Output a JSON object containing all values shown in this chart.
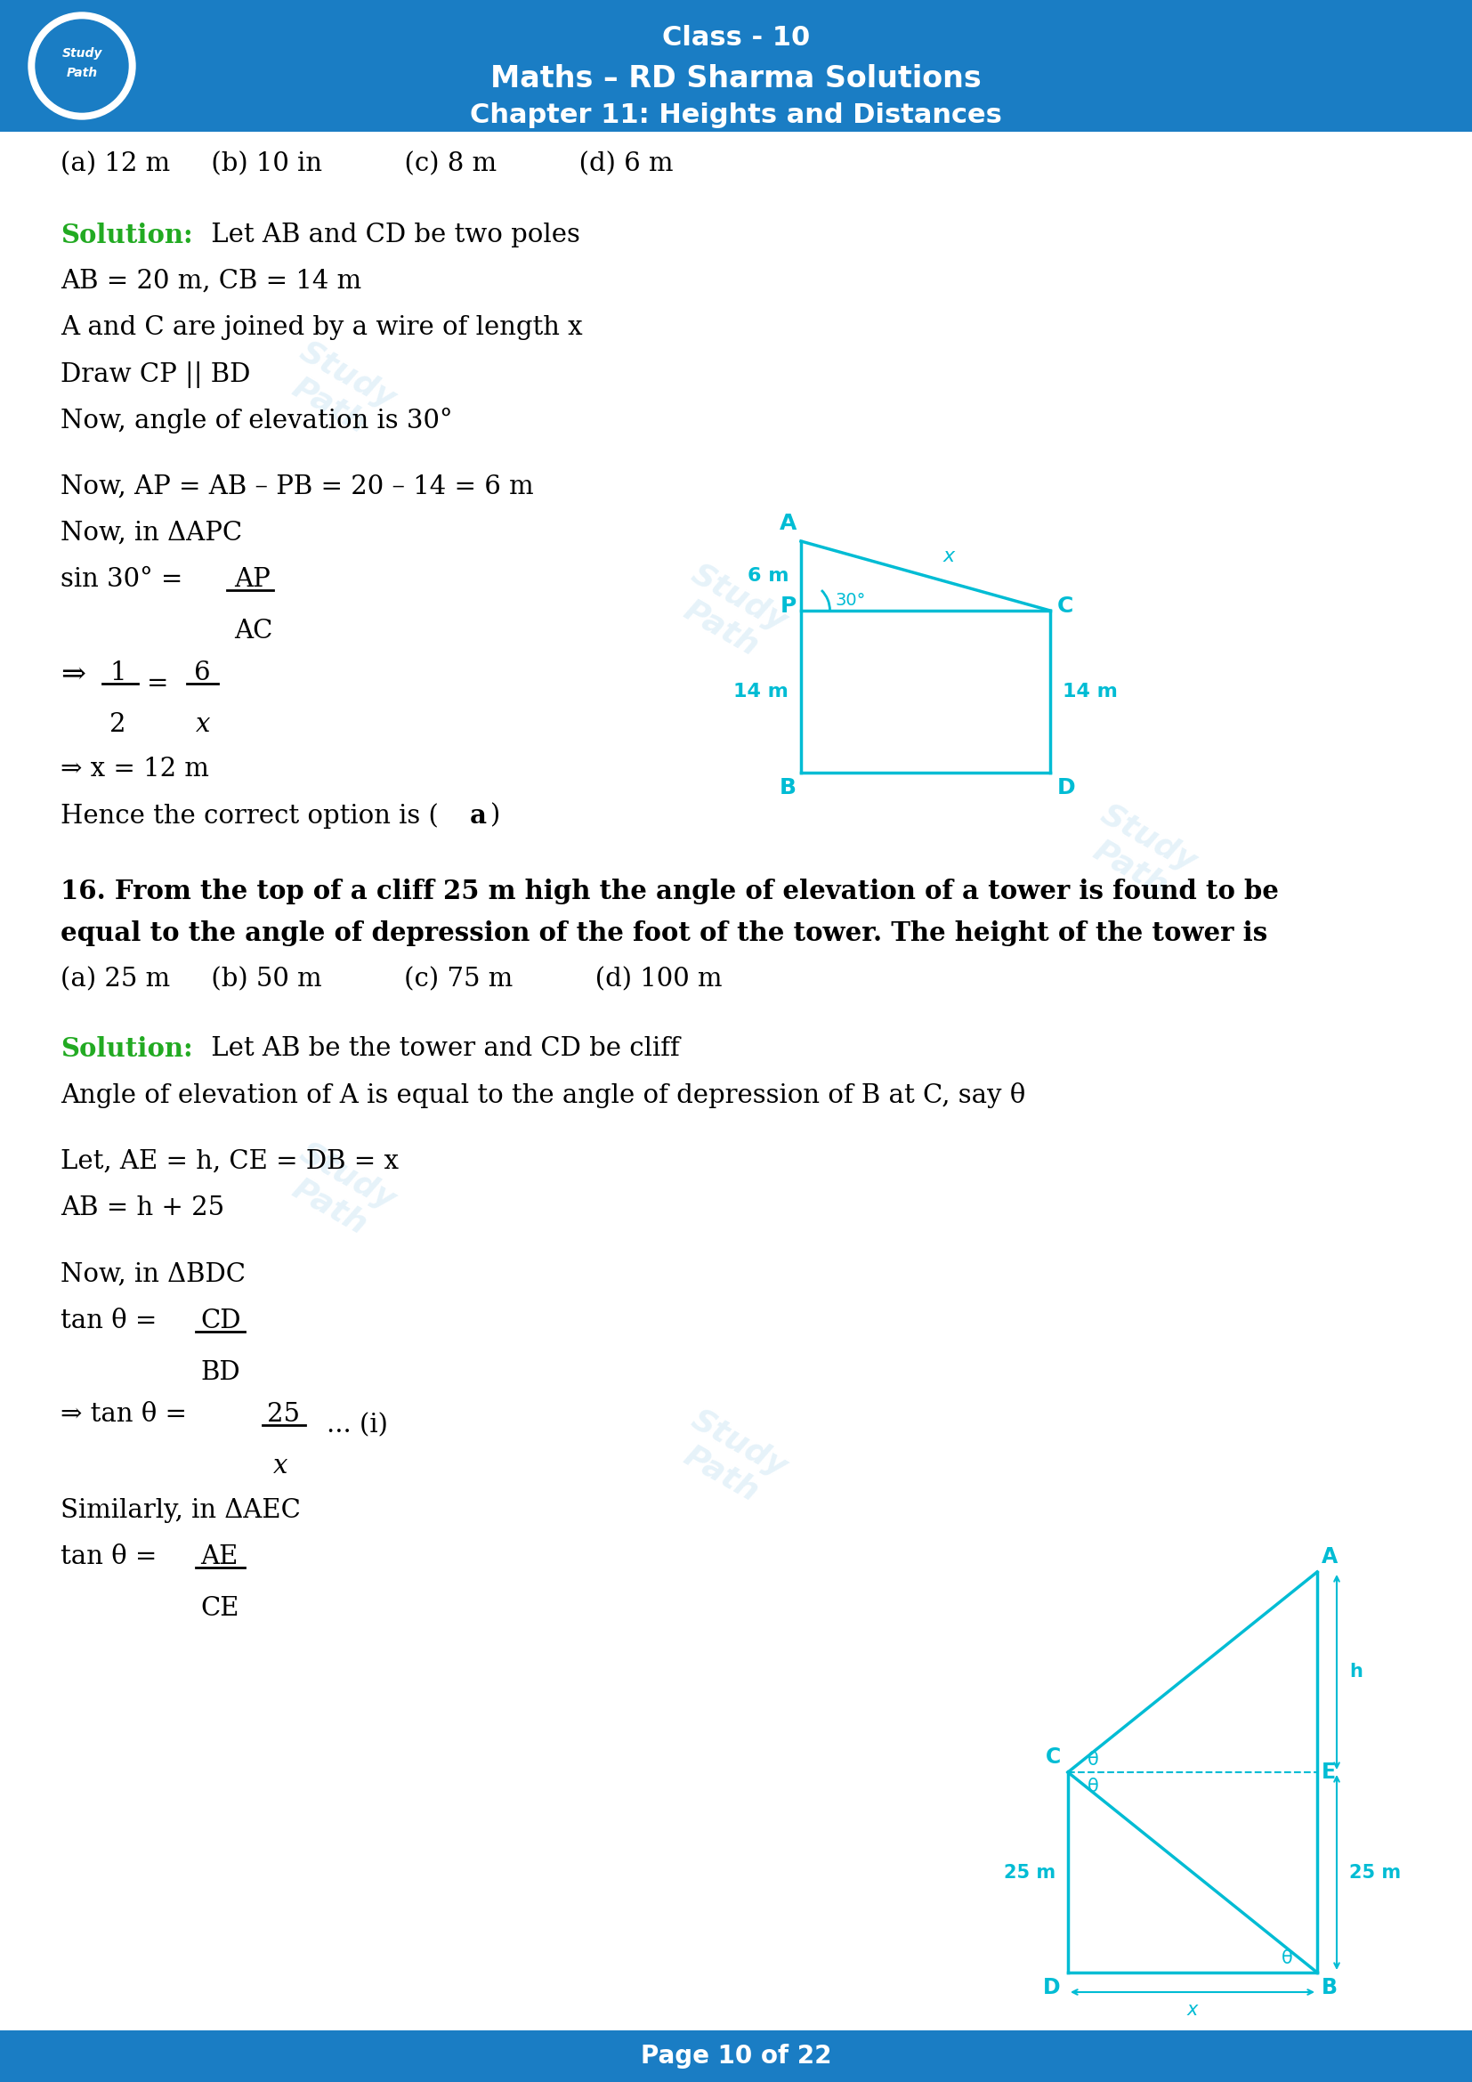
{
  "header_bg_color": "#1a7dc4",
  "header_text_color": "#ffffff",
  "footer_bg_color": "#1a7dc4",
  "footer_text_color": "#ffffff",
  "page_bg_color": "#ffffff",
  "body_text_color": "#000000",
  "solution_color": "#22aa22",
  "diagram_color": "#00bcd4",
  "bold_question_color": "#000000",
  "class_line": "Class - 10",
  "maths_line": "Maths – RD Sharma Solutions",
  "chapter_line": "Chapter 11: Heights and Distances",
  "footer_text": "Page 10 of 22",
  "options_q1": "(a) 12 m     (b) 10 in          (c) 8 m          (d) 6 m",
  "solution1_label": "Solution:",
  "solution1_text": " Let AB and CD be two poles",
  "sol1_line2": "AB = 20 m, CB = 14 m",
  "sol1_line3": "A and C are joined by a wire of length x",
  "sol1_line4": "Draw CP || BD",
  "sol1_line5": "Now, angle of elevation is 30°",
  "sol1_line6": "Now, AP = AB – PB = 20 – 14 = 6 m",
  "sol1_line7": "Now, in ΔAPC",
  "sol1_result": "⇒ x = 12 m",
  "sol1_conclusion_pre": "Hence the correct option is (",
  "sol1_conclusion_bold": "a",
  "sol1_conclusion_post": ")",
  "q16_line1": "16. From the top of a cliff 25 m high the angle of elevation of a tower is found to be",
  "q16_line2": "equal to the angle of depression of the foot of the tower. The height of the tower is",
  "options_q16": "(a) 25 m     (b) 50 m          (c) 75 m          (d) 100 m",
  "solution2_label": "Solution:",
  "solution2_text": " Let AB be the tower and CD be cliff",
  "sol2_line2": "Angle of elevation of A is equal to the angle of depression of B at C, say θ",
  "sol2_line3": "Let, AE = h, CE = DB = x",
  "sol2_line4": "AB = h + 25",
  "sol2_line5": "Now, in ΔBDC",
  "sol2_line7": "Similarly, in ΔAEC"
}
